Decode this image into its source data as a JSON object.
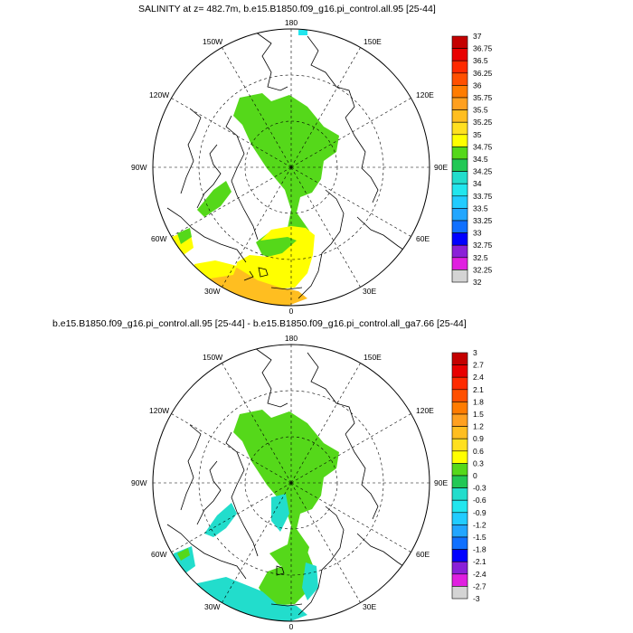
{
  "top": {
    "title": "SALINITY at z= 482.7m, b.e15.B1850.f09_g16.pi_control.all.95 [25-44]",
    "colorbar_labels": [
      "37",
      "36.75",
      "36.5",
      "36.25",
      "36",
      "35.75",
      "35.5",
      "35.25",
      "35",
      "34.75",
      "34.5",
      "34.25",
      "34",
      "33.75",
      "33.5",
      "33.25",
      "33",
      "32.75",
      "32.5",
      "32.25",
      "32"
    ],
    "colorbar_colors": [
      "#c40000",
      "#e80000",
      "#ff2a00",
      "#ff5000",
      "#ff7c00",
      "#ffa020",
      "#ffbe20",
      "#ffe020",
      "#ffff00",
      "#55d81a",
      "#22c855",
      "#22ddcc",
      "#22e6ee",
      "#22ccff",
      "#22a6ff",
      "#1070ff",
      "#0000ff",
      "#8a20d8",
      "#e020e0",
      "#d4d4d4",
      "#787878"
    ]
  },
  "bottom": {
    "title": "b.e15.B1850.f09_g16.pi_control.all.95 [25-44] - b.e15.B1850.f09_g16.pi_control.all_ga7.66 [25-44]",
    "colorbar_labels": [
      "3",
      "2.7",
      "2.4",
      "2.1",
      "1.8",
      "1.5",
      "1.2",
      "0.9",
      "0.6",
      "0.3",
      "0",
      "-0.3",
      "-0.6",
      "-0.9",
      "-1.2",
      "-1.5",
      "-1.8",
      "-2.1",
      "-2.4",
      "-2.7",
      "-3"
    ],
    "colorbar_colors": [
      "#c40000",
      "#e80000",
      "#ff2a00",
      "#ff5000",
      "#ff7c00",
      "#ffa020",
      "#ffbe20",
      "#ffe020",
      "#ffff00",
      "#55d81a",
      "#22c855",
      "#22ddcc",
      "#22e6ee",
      "#22ccff",
      "#22a6ff",
      "#1070ff",
      "#0000ff",
      "#8a20d8",
      "#e020e0",
      "#d4d4d4",
      "#787878"
    ]
  },
  "map": {
    "lon_labels": [
      "180",
      "150E",
      "120E",
      "90E",
      "60E",
      "30E",
      "0",
      "30W",
      "60W",
      "90W",
      "120W",
      "150W"
    ]
  }
}
